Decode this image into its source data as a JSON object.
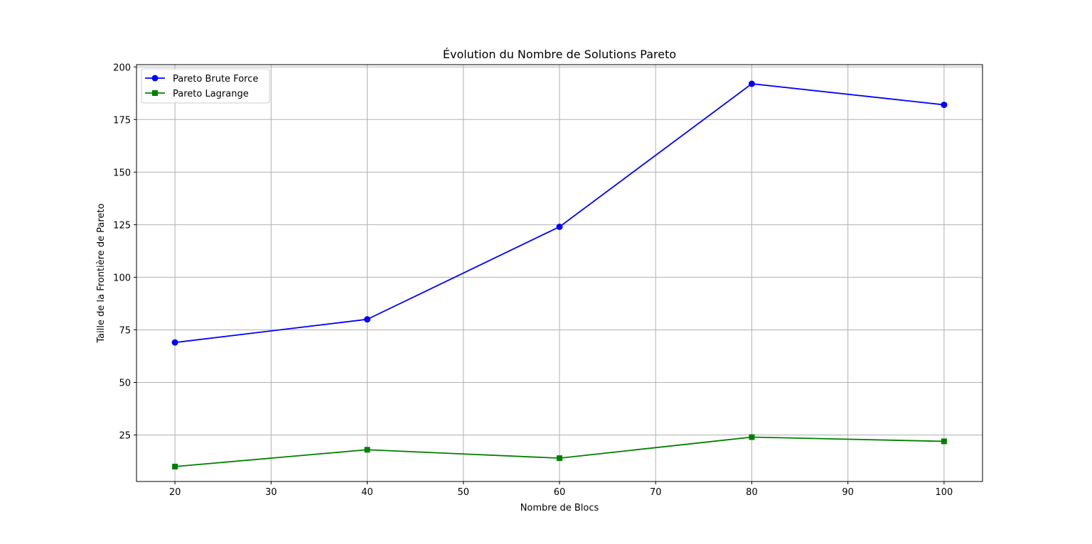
{
  "chart_data": {
    "type": "line",
    "title": "Évolution du Nombre de Solutions Pareto",
    "xlabel": "Nombre de Blocs",
    "ylabel": "Taille de la Frontière de Pareto",
    "x": [
      20,
      40,
      60,
      80,
      100
    ],
    "xlim": [
      16,
      104
    ],
    "ylim": [
      2.9,
      201.1
    ],
    "xticks": [
      20,
      30,
      40,
      50,
      60,
      70,
      80,
      90,
      100
    ],
    "yticks": [
      25,
      50,
      75,
      100,
      125,
      150,
      175,
      200
    ],
    "grid": true,
    "legend_position": "top-left",
    "series": [
      {
        "name": "Pareto Brute Force",
        "values": [
          69,
          80,
          124,
          192,
          182
        ],
        "color": "#0000ff",
        "marker": "circle"
      },
      {
        "name": "Pareto Lagrange",
        "values": [
          10,
          18,
          14,
          24,
          22
        ],
        "color": "#008000",
        "marker": "square"
      }
    ]
  }
}
